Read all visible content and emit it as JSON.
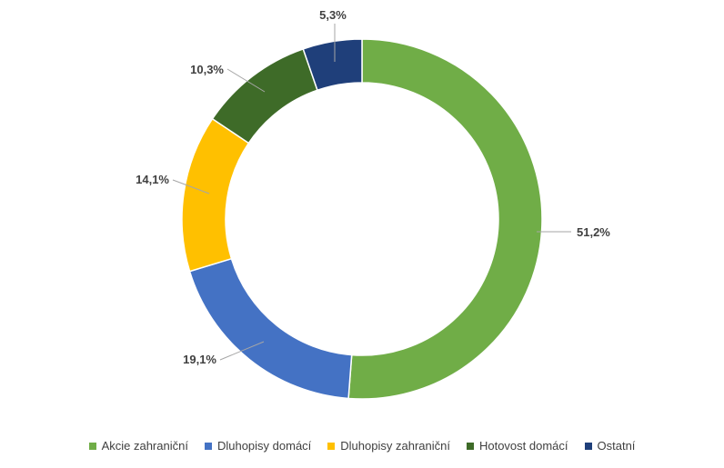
{
  "chart_data": {
    "type": "pie",
    "variant": "donut",
    "categories": [
      "Akcie zahraniční",
      "Dluhopisy domácí",
      "Dluhopisy zahraniční",
      "Hotovost domácí",
      "Ostatní"
    ],
    "values": [
      51.2,
      19.1,
      14.1,
      10.3,
      5.3
    ],
    "data_labels": [
      "51,2%",
      "19,1%",
      "14,1%",
      "10,3%",
      "5,3%"
    ],
    "colors": [
      "#70ad47",
      "#4472c4",
      "#ffc000",
      "#3e6b28",
      "#1f3f7a"
    ],
    "legend": "bottom",
    "title": ""
  }
}
